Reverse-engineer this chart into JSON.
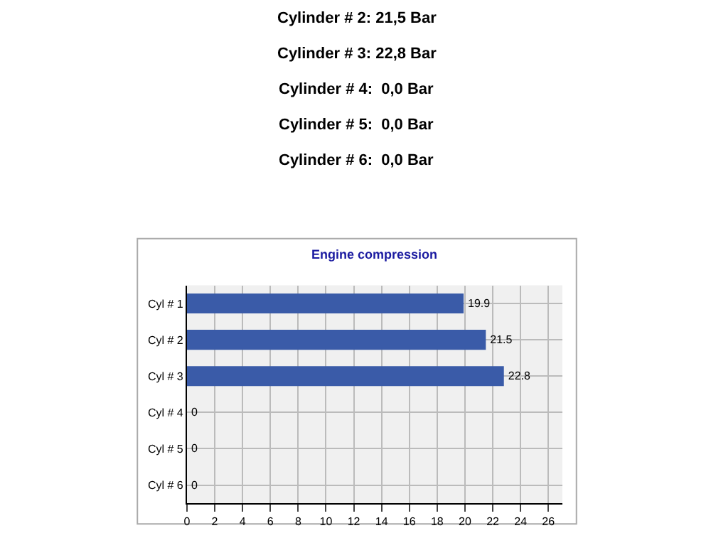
{
  "chart_data": {
    "type": "bar",
    "orientation": "horizontal",
    "title": "Engine compression",
    "categories": [
      "Cyl # 1",
      "Cyl # 2",
      "Cyl # 3",
      "Cyl # 4",
      "Cyl # 5",
      "Cyl # 6"
    ],
    "values": [
      19.9,
      21.5,
      22.8,
      0,
      0,
      0
    ],
    "color": "#3a5ba8",
    "xlim": [
      0,
      27
    ],
    "xticks": [
      0,
      2,
      4,
      6,
      8,
      10,
      12,
      14,
      16,
      18,
      20,
      22,
      24,
      26
    ],
    "grid": true,
    "data_labels": true,
    "legend": false,
    "annotations": [
      "Cylinder # 2: 21,5 Bar",
      "Cylinder # 3: 22,8 Bar",
      "Cylinder # 4:  0,0 Bar",
      "Cylinder # 5:  0,0 Bar",
      "Cylinder # 6:  0,0 Bar"
    ]
  }
}
